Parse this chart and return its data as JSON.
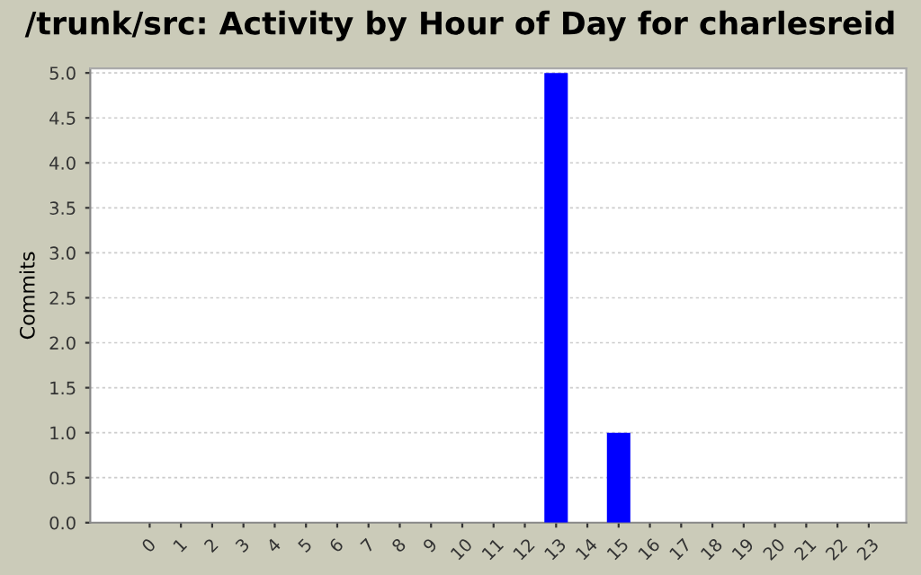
{
  "chart_data": {
    "type": "bar",
    "title": "/trunk/src: Activity by Hour of Day for charlesreid",
    "ylabel": "Commits",
    "categories": [
      "0",
      "1",
      "2",
      "3",
      "4",
      "5",
      "6",
      "7",
      "8",
      "9",
      "10",
      "11",
      "12",
      "13",
      "14",
      "15",
      "16",
      "17",
      "18",
      "19",
      "20",
      "21",
      "22",
      "23"
    ],
    "values": [
      0,
      0,
      0,
      0,
      0,
      0,
      0,
      0,
      0,
      0,
      0,
      0,
      0,
      5,
      0,
      1,
      0,
      0,
      0,
      0,
      0,
      0,
      0,
      0
    ],
    "color": "#0000ff",
    "ylim": [
      0,
      5.05
    ],
    "yticks": [
      {
        "value": 0,
        "label": "0.0"
      },
      {
        "value": 0.5,
        "label": "0.5"
      },
      {
        "value": 1,
        "label": "1.0"
      },
      {
        "value": 1.5,
        "label": "1.5"
      },
      {
        "value": 2,
        "label": "2.0"
      },
      {
        "value": 2.5,
        "label": "2.5"
      },
      {
        "value": 3,
        "label": "3.0"
      },
      {
        "value": 3.5,
        "label": "3.5"
      },
      {
        "value": 4,
        "label": "4.0"
      },
      {
        "value": 4.5,
        "label": "4.5"
      },
      {
        "value": 5,
        "label": "5.0"
      }
    ],
    "grid": "y"
  }
}
